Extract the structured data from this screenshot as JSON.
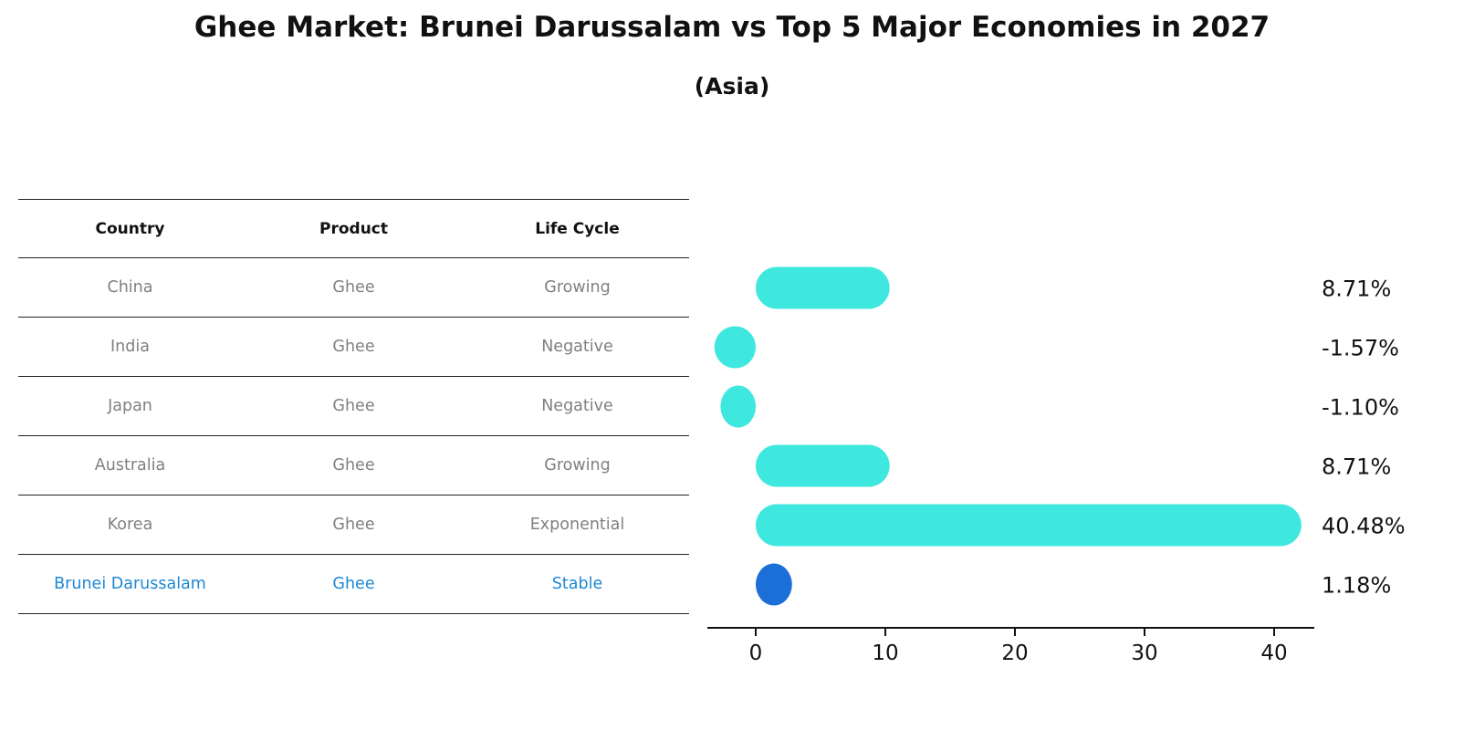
{
  "title": "Ghee Market: Brunei Darussalam vs Top 5 Major Economies in 2027",
  "subtitle": "(Asia)",
  "table": {
    "headers": [
      "Country",
      "Product",
      "Life Cycle"
    ],
    "rows": [
      {
        "country": "China",
        "product": "Ghee",
        "life_cycle": "Growing",
        "highlight": false
      },
      {
        "country": "India",
        "product": "Ghee",
        "life_cycle": "Negative",
        "highlight": false
      },
      {
        "country": "Japan",
        "product": "Ghee",
        "life_cycle": "Negative",
        "highlight": false
      },
      {
        "country": "Australia",
        "product": "Ghee",
        "life_cycle": "Growing",
        "highlight": false
      },
      {
        "country": "Korea",
        "product": "Ghee",
        "life_cycle": "Exponential",
        "highlight": false
      },
      {
        "country": "Brunei Darussalam",
        "product": "Ghee",
        "life_cycle": "Stable",
        "highlight": true
      }
    ]
  },
  "chart_data": {
    "type": "bar",
    "orientation": "horizontal",
    "title": "Ghee Market: Brunei Darussalam vs Top 5 Major Economies in 2027",
    "subtitle": "(Asia)",
    "categories": [
      "China",
      "India",
      "Japan",
      "Australia",
      "Korea",
      "Brunei Darussalam"
    ],
    "values": [
      8.71,
      -1.57,
      -1.1,
      8.71,
      40.48,
      1.18
    ],
    "value_labels": [
      "8.71%",
      "-1.57%",
      "-1.10%",
      "8.71%",
      "40.48%",
      "1.18%"
    ],
    "xticks": [
      0,
      10,
      20,
      30,
      40
    ],
    "xlim": [
      -4,
      43
    ],
    "grid": false,
    "legend": false,
    "bar_color": "#3FE8DE",
    "highlight_color": "#1B6FD6",
    "highlight_index": 5,
    "axis_color": "#111111",
    "label_color": "#111111"
  },
  "colors": {
    "row_text": "#808080",
    "highlight_text": "#1E88D4",
    "header_text": "#111111"
  }
}
